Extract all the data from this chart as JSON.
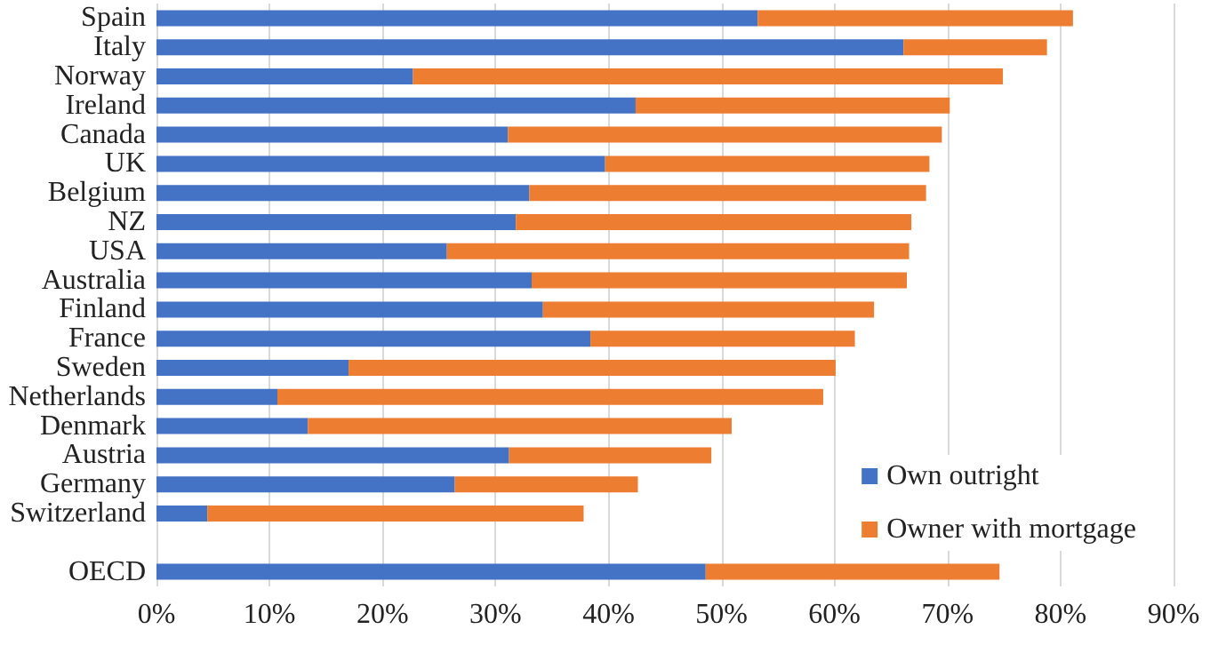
{
  "chart_data": {
    "type": "bar",
    "orientation": "horizontal",
    "stacked": true,
    "categories": [
      "Spain",
      "Italy",
      "Norway",
      "Ireland",
      "Canada",
      "UK",
      "Belgium",
      "NZ",
      "USA",
      "Australia",
      "Finland",
      "France",
      "Sweden",
      "Netherlands",
      "Denmark",
      "Austria",
      "Germany",
      "Switzerland",
      null,
      "OECD"
    ],
    "series": [
      {
        "name": "Own outright",
        "color": "#4472c4",
        "values": [
          53.2,
          66.1,
          22.7,
          42.4,
          31.1,
          39.7,
          33.0,
          31.8,
          25.7,
          33.2,
          34.2,
          38.4,
          17.0,
          10.7,
          13.4,
          31.2,
          26.4,
          4.5,
          null,
          48.6
        ]
      },
      {
        "name": "Owner with mortgage",
        "color": "#ed7d31",
        "values": [
          27.9,
          12.7,
          52.2,
          27.8,
          38.4,
          28.7,
          35.1,
          35.0,
          40.9,
          33.2,
          29.3,
          23.4,
          43.1,
          48.3,
          37.5,
          17.9,
          16.2,
          33.3,
          null,
          26.0
        ]
      }
    ],
    "xlim": [
      0,
      90
    ],
    "xticks": [
      {
        "value": 0,
        "label": "0%"
      },
      {
        "value": 10,
        "label": "10%"
      },
      {
        "value": 20,
        "label": "20%"
      },
      {
        "value": 30,
        "label": "30%"
      },
      {
        "value": 40,
        "label": "40%"
      },
      {
        "value": 50,
        "label": "50%"
      },
      {
        "value": 60,
        "label": "60%"
      },
      {
        "value": 70,
        "label": "70%"
      },
      {
        "value": 80,
        "label": "80%"
      },
      {
        "value": 90,
        "label": "90%"
      }
    ],
    "grid": "x",
    "legend": "bottom right"
  }
}
